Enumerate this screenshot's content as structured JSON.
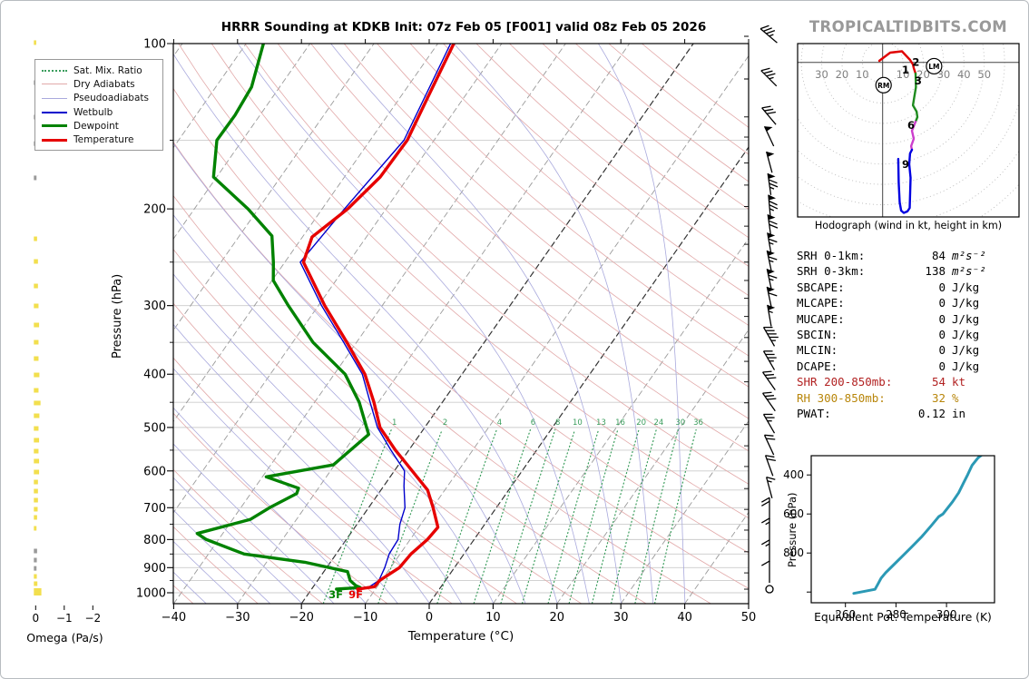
{
  "page": {
    "title": "HRRR Sounding at KDKB Init: 07z Feb 05 [F001] valid 08z Feb 05 2026",
    "watermark": "TROPICALTIDBITS.COM"
  },
  "colors": {
    "temperature": "#e60000",
    "dewpoint": "#008200",
    "wetbulb": "#0000cc",
    "dry_adiabat": "#e2a9a9",
    "pseudoadiabat": "#aaaadd",
    "mixing_ratio": "#3a9d5c",
    "isotherm": "#9a9a9a",
    "isotherm_bold": "#333333",
    "grid": "#cccccc",
    "omega_bar": "#f2df4e",
    "omega_bar_gray": "#9a9a9a",
    "theta_e_curve": "#2b99b5",
    "hodo_red": "#e00000",
    "hodo_green": "#1e8b1e",
    "hodo_magenta": "#cc3ecc",
    "hodo_blue": "#0000e0",
    "stat_shear": "#b22222",
    "stat_rh": "#b8860b",
    "axis_gray": "#808080"
  },
  "legend": {
    "items": [
      {
        "label": "Sat. Mix. Ratio",
        "color": "#3a9d5c",
        "style": "dotted",
        "weight": 2
      },
      {
        "label": "Dry Adiabats",
        "color": "#e2a9a9",
        "style": "solid",
        "weight": 1
      },
      {
        "label": "Pseudoadiabats",
        "color": "#aaaadd",
        "style": "solid",
        "weight": 1
      },
      {
        "label": "Wetbulb",
        "color": "#0000cc",
        "style": "solid",
        "weight": 2
      },
      {
        "label": "Dewpoint",
        "color": "#008200",
        "style": "solid",
        "weight": 3
      },
      {
        "label": "Temperature",
        "color": "#e60000",
        "style": "solid",
        "weight": 3
      }
    ]
  },
  "skewt": {
    "pressure_label": "Pressure (hPa)",
    "temp_label": "Temperature (°C)",
    "pressure_ticks": [
      100,
      200,
      300,
      400,
      500,
      600,
      700,
      800,
      900,
      1000
    ],
    "pressure_minor_ticks": [
      150,
      250,
      350,
      450,
      550,
      650,
      750,
      850,
      950
    ],
    "temp_ticks": [
      -40,
      -30,
      -20,
      -10,
      0,
      10,
      20,
      30,
      40,
      50
    ],
    "isotherm_bold_values": [
      0,
      -20
    ],
    "mixing_ratio_values": [
      1,
      2,
      4,
      6,
      8,
      10,
      13,
      16,
      20,
      24,
      30,
      36
    ],
    "surface_dewpoint_label": "3F",
    "surface_temp_label": "9F"
  },
  "omega_panel": {
    "label": "Omega (Pa/s)",
    "ticks": [
      0,
      -1,
      -2
    ]
  },
  "hodograph": {
    "caption": "Hodograph (wind in kt, height in km)",
    "ring_step_kt": 10,
    "axis_labels_left": [
      30,
      20,
      10
    ],
    "axis_labels_right": [
      10,
      20,
      30,
      40,
      50
    ],
    "height_marks": [
      {
        "label": "1",
        "u": 11.3,
        "v": -3.7
      },
      {
        "label": "2",
        "u": 16.4,
        "v": 0.0
      },
      {
        "label": "3",
        "u": 17.5,
        "v": -9.1
      },
      {
        "label": "6",
        "u": 14.0,
        "v": -30.9
      },
      {
        "label": "9",
        "u": 11.3,
        "v": -50.1
      }
    ],
    "storm_motion_markers": [
      {
        "label": "RM",
        "u": 0.45,
        "v": -11.2
      },
      {
        "label": "LM",
        "u": 25.3,
        "v": -1.9
      }
    ]
  },
  "stats": {
    "rows": [
      {
        "label": "SRH 0-1km:",
        "value": "84",
        "unit": "m²s⁻²",
        "math": true,
        "color": "default"
      },
      {
        "label": "SRH 0-3km:",
        "value": "138",
        "unit": "m²s⁻²",
        "math": true,
        "color": "default"
      },
      {
        "label": "SBCAPE:",
        "value": "0",
        "unit": "J/kg",
        "math": false,
        "color": "default"
      },
      {
        "label": "MLCAPE:",
        "value": "0",
        "unit": "J/kg",
        "math": false,
        "color": "default"
      },
      {
        "label": "MUCAPE:",
        "value": "0",
        "unit": "J/kg",
        "math": false,
        "color": "default"
      },
      {
        "label": "SBCIN:",
        "value": "0",
        "unit": "J/kg",
        "math": false,
        "color": "default"
      },
      {
        "label": "MLCIN:",
        "value": "0",
        "unit": "J/kg",
        "math": false,
        "color": "default"
      },
      {
        "label": "DCAPE:",
        "value": "0",
        "unit": "J/kg",
        "math": false,
        "color": "default"
      },
      {
        "label": "SHR 200-850mb:",
        "value": "54",
        "unit": "kt",
        "math": false,
        "color": "shear"
      },
      {
        "label": "RH 300-850mb:",
        "value": "32",
        "unit": "%",
        "math": false,
        "color": "rh"
      },
      {
        "label": "PWAT:",
        "value": "0.12",
        "unit": "in",
        "math": false,
        "color": "default"
      }
    ]
  },
  "theta_e_panel": {
    "xlabel": "Equivalent Pot. Temperature (K)",
    "ylabel": "Pressure (hPa)",
    "xticks": [
      260,
      280,
      300
    ],
    "yticks": [
      400,
      600,
      800
    ]
  },
  "chart_data": [
    {
      "id": "sounding",
      "type": "line",
      "title": "HRRR Sounding at KDKB Init: 07z Feb 05 [F001] valid 08z Feb 05 2026",
      "xlabel": "Temperature (°C)",
      "ylabel": "Pressure (hPa)",
      "xlim": [
        -40,
        50
      ],
      "plim": [
        100,
        1045
      ],
      "series": [
        {
          "name": "Temperature",
          "units": [
            "hPa",
            "C"
          ],
          "points": [
            [
              100,
              -57.5
            ],
            [
              125,
              -55.7
            ],
            [
              150,
              -54.2
            ],
            [
              175,
              -54.4
            ],
            [
              200,
              -56.0
            ],
            [
              225,
              -58.5
            ],
            [
              250,
              -57.1
            ],
            [
              300,
              -49.0
            ],
            [
              350,
              -41.5
            ],
            [
              400,
              -35.2
            ],
            [
              450,
              -30.7
            ],
            [
              500,
              -27.0
            ],
            [
              550,
              -22.1
            ],
            [
              600,
              -17.2
            ],
            [
              650,
              -12.7
            ],
            [
              700,
              -9.9
            ],
            [
              760,
              -7.0
            ],
            [
              800,
              -7.3
            ],
            [
              850,
              -8.3
            ],
            [
              900,
              -8.6
            ],
            [
              950,
              -10.3
            ],
            [
              975,
              -10.4
            ],
            [
              985,
              -12.8
            ]
          ]
        },
        {
          "name": "Dewpoint",
          "units": [
            "hPa",
            "C"
          ],
          "points": [
            [
              100,
              -87.3
            ],
            [
              120,
              -84.4
            ],
            [
              135,
              -83.9
            ],
            [
              150,
              -84.0
            ],
            [
              175,
              -80.5
            ],
            [
              200,
              -71.6
            ],
            [
              224,
              -64.9
            ],
            [
              250,
              -61.8
            ],
            [
              270,
              -59.8
            ],
            [
              300,
              -54.7
            ],
            [
              350,
              -46.8
            ],
            [
              400,
              -38.3
            ],
            [
              450,
              -33.0
            ],
            [
              500,
              -29.1
            ],
            [
              515,
              -28.0
            ],
            [
              585,
              -30.2
            ],
            [
              615,
              -39.4
            ],
            [
              645,
              -33.1
            ],
            [
              660,
              -32.8
            ],
            [
              700,
              -35.5
            ],
            [
              735,
              -37.2
            ],
            [
              780,
              -44.0
            ],
            [
              800,
              -41.9
            ],
            [
              850,
              -34.4
            ],
            [
              880,
              -24.0
            ],
            [
              915,
              -16.3
            ],
            [
              950,
              -14.9
            ],
            [
              970,
              -13.5
            ],
            [
              978,
              -12.6
            ],
            [
              985,
              -16.1
            ]
          ]
        },
        {
          "name": "Wetbulb",
          "units": [
            "hPa",
            "C"
          ],
          "points": [
            [
              100,
              -58.0
            ],
            [
              150,
              -54.7
            ],
            [
              200,
              -56.5
            ],
            [
              250,
              -57.6
            ],
            [
              300,
              -49.5
            ],
            [
              350,
              -42.0
            ],
            [
              400,
              -35.6
            ],
            [
              450,
              -31.3
            ],
            [
              500,
              -27.4
            ],
            [
              550,
              -22.8
            ],
            [
              600,
              -18.4
            ],
            [
              640,
              -16.8
            ],
            [
              700,
              -14.3
            ],
            [
              750,
              -13.3
            ],
            [
              800,
              -11.9
            ],
            [
              850,
              -11.7
            ],
            [
              900,
              -10.9
            ],
            [
              950,
              -10.4
            ],
            [
              975,
              -11.2
            ],
            [
              985,
              -13.9
            ]
          ]
        }
      ]
    },
    {
      "id": "wind_barbs",
      "type": "barbs",
      "units": [
        "hPa",
        "kt"
      ],
      "levels": [
        [
          97,
          35,
          -50,
          "R"
        ],
        [
          116,
          35,
          -45,
          "R"
        ],
        [
          136,
          30,
          -40,
          "R"
        ],
        [
          148,
          50,
          -25,
          "R"
        ],
        [
          165,
          50,
          -15,
          "R"
        ],
        [
          181,
          75,
          -8,
          "R"
        ],
        [
          198,
          75,
          -5,
          "R"
        ],
        [
          215,
          70,
          -8,
          "R"
        ],
        [
          232,
          65,
          -10,
          "R"
        ],
        [
          250,
          65,
          -12,
          "R"
        ],
        [
          270,
          65,
          -12,
          "R"
        ],
        [
          291,
          60,
          -12,
          "R"
        ],
        [
          314,
          55,
          -10,
          "R"
        ],
        [
          343,
          45,
          -30,
          "R"
        ],
        [
          379,
          35,
          -30,
          "R"
        ],
        [
          413,
          30,
          -35,
          "R"
        ],
        [
          451,
          30,
          -35,
          "R"
        ],
        [
          494,
          25,
          -30,
          "R"
        ],
        [
          540,
          20,
          -25,
          "R"
        ],
        [
          589,
          20,
          -20,
          "R"
        ],
        [
          646,
          15,
          -15,
          "R"
        ],
        [
          705,
          20,
          0,
          "L"
        ],
        [
          769,
          15,
          0,
          "L"
        ],
        [
          842,
          15,
          0,
          "L"
        ],
        [
          920,
          10,
          0,
          "L"
        ],
        [
          985,
          0,
          0,
          "L"
        ]
      ]
    },
    {
      "id": "omega",
      "type": "bar",
      "units": [
        "hPa",
        "Pa/s"
      ],
      "bars": [
        [
          99.6,
          -0.02,
          "y"
        ],
        [
          117.8,
          -0.02,
          "g"
        ],
        [
          136.1,
          -0.02,
          "g"
        ],
        [
          152.1,
          -0.02,
          "g"
        ],
        [
          175.6,
          -0.03,
          "g"
        ],
        [
          226.7,
          -0.05,
          "y"
        ],
        [
          249.3,
          -0.08,
          "y"
        ],
        [
          276.3,
          -0.08,
          "y"
        ],
        [
          300.4,
          -0.1,
          "y"
        ],
        [
          325.4,
          -0.12,
          "y"
        ],
        [
          349.8,
          -0.1,
          "y"
        ],
        [
          374.6,
          -0.1,
          "y"
        ],
        [
          401.2,
          -0.13,
          "y"
        ],
        [
          428,
          -0.1,
          "y"
        ],
        [
          451.3,
          -0.17,
          "y"
        ],
        [
          476.1,
          -0.13,
          "y"
        ],
        [
          502.2,
          -0.1,
          "y"
        ],
        [
          527.5,
          -0.12,
          "y"
        ],
        [
          552.3,
          -0.1,
          "y"
        ],
        [
          575.8,
          -0.12,
          "y"
        ],
        [
          602.8,
          -0.12,
          "y"
        ],
        [
          628.6,
          -0.08,
          "y"
        ],
        [
          653,
          -0.08,
          "y"
        ],
        [
          678.3,
          -0.08,
          "y"
        ],
        [
          704.5,
          -0.07,
          "y"
        ],
        [
          729.1,
          -0.05,
          "y"
        ],
        [
          763.2,
          -0.03,
          "y"
        ],
        [
          839.4,
          -0.05,
          "g"
        ],
        [
          872,
          -0.04,
          "g"
        ],
        [
          902.8,
          -0.03,
          "g"
        ],
        [
          933.8,
          -0.04,
          "y"
        ],
        [
          962.6,
          -0.06,
          "y"
        ],
        [
          996.2,
          -0.2,
          "y"
        ]
      ]
    },
    {
      "id": "hodograph_trace",
      "type": "line",
      "units": [
        "kt",
        "kt"
      ],
      "segments": [
        {
          "layer": "0-3km",
          "color_key": "hodo_red",
          "points": [
            [
              -1.65,
              0.76
            ],
            [
              3.7,
              4.78
            ],
            [
              9.5,
              5.45
            ],
            [
              13.5,
              1.2
            ],
            [
              14.9,
              -1.03
            ],
            [
              15.3,
              -2.8
            ],
            [
              16.2,
              -5.5
            ]
          ]
        },
        {
          "layer": "3-6km",
          "color_key": "hodo_green",
          "points": [
            [
              16.2,
              -5.5
            ],
            [
              16.4,
              -12.2
            ],
            [
              15.5,
              -17.5
            ],
            [
              14.9,
              -21.1
            ],
            [
              16.7,
              -24.2
            ],
            [
              17.1,
              -26.9
            ],
            [
              16.2,
              -29.2
            ]
          ]
        },
        {
          "layer": "6-9km",
          "color_key": "hodo_magenta",
          "points": [
            [
              16.2,
              -29.2
            ],
            [
              14.4,
              -33.6
            ],
            [
              15.3,
              -37.6
            ],
            [
              14.0,
              -41.2
            ],
            [
              14.4,
              -43.0
            ]
          ]
        },
        {
          "layer": "9km+",
          "color_key": "hodo_blue",
          "points": [
            [
              14.4,
              -43.0
            ],
            [
              13.5,
              -44.8
            ],
            [
              13.1,
              -50.1
            ],
            [
              13.75,
              -56.8
            ],
            [
              13.5,
              -65.8
            ],
            [
              13.3,
              -71.6
            ],
            [
              12.2,
              -73.3
            ],
            [
              10.4,
              -74.0
            ],
            [
              9.1,
              -72.9
            ],
            [
              8.4,
              -68.9
            ],
            [
              7.9,
              -59.1
            ],
            [
              7.7,
              -47.5
            ]
          ]
        }
      ]
    },
    {
      "id": "theta_e",
      "type": "line",
      "units": [
        "K",
        "hPa"
      ],
      "xlabel": "Equivalent Pot. Temperature (K)",
      "ylabel": "Pressure (hPa)",
      "xlim": [
        247,
        320
      ],
      "plim": [
        300,
        1050
      ],
      "points": [
        [
          263.3,
          1007
        ],
        [
          271.7,
          986
        ],
        [
          272.7,
          963
        ],
        [
          274.1,
          929
        ],
        [
          275.9,
          901
        ],
        [
          277.7,
          878
        ],
        [
          281.9,
          824
        ],
        [
          286.1,
          770
        ],
        [
          290.3,
          715
        ],
        [
          293.9,
          661
        ],
        [
          296.9,
          614
        ],
        [
          298.6,
          600
        ],
        [
          302.4,
          537
        ],
        [
          304.8,
          491
        ],
        [
          306.6,
          444
        ],
        [
          308.4,
          398
        ],
        [
          310.1,
          351
        ],
        [
          312.5,
          312
        ],
        [
          313.7,
          300
        ]
      ]
    }
  ]
}
